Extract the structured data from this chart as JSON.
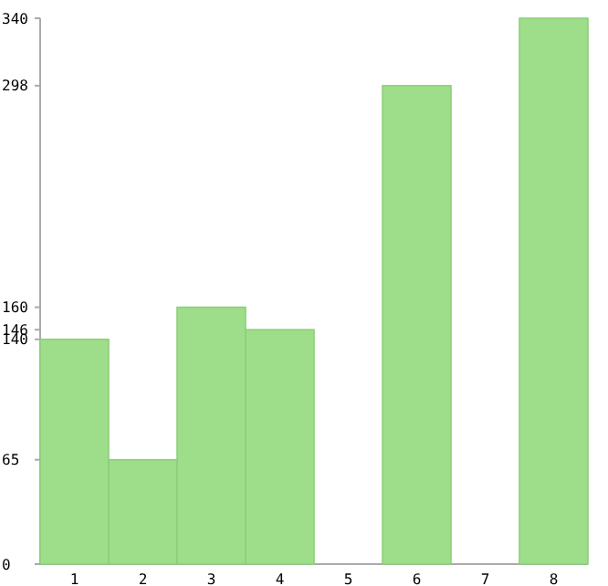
{
  "chart_data": {
    "type": "bar",
    "categories": [
      "1",
      "2",
      "3",
      "4",
      "5",
      "6",
      "7",
      "8"
    ],
    "values": [
      140,
      65,
      160,
      146,
      0,
      298,
      0,
      340
    ],
    "color": "#9ede8a",
    "ylim": [
      0,
      340
    ],
    "yticks": [
      0,
      65,
      140,
      146,
      160,
      298,
      340
    ],
    "grid": false
  }
}
